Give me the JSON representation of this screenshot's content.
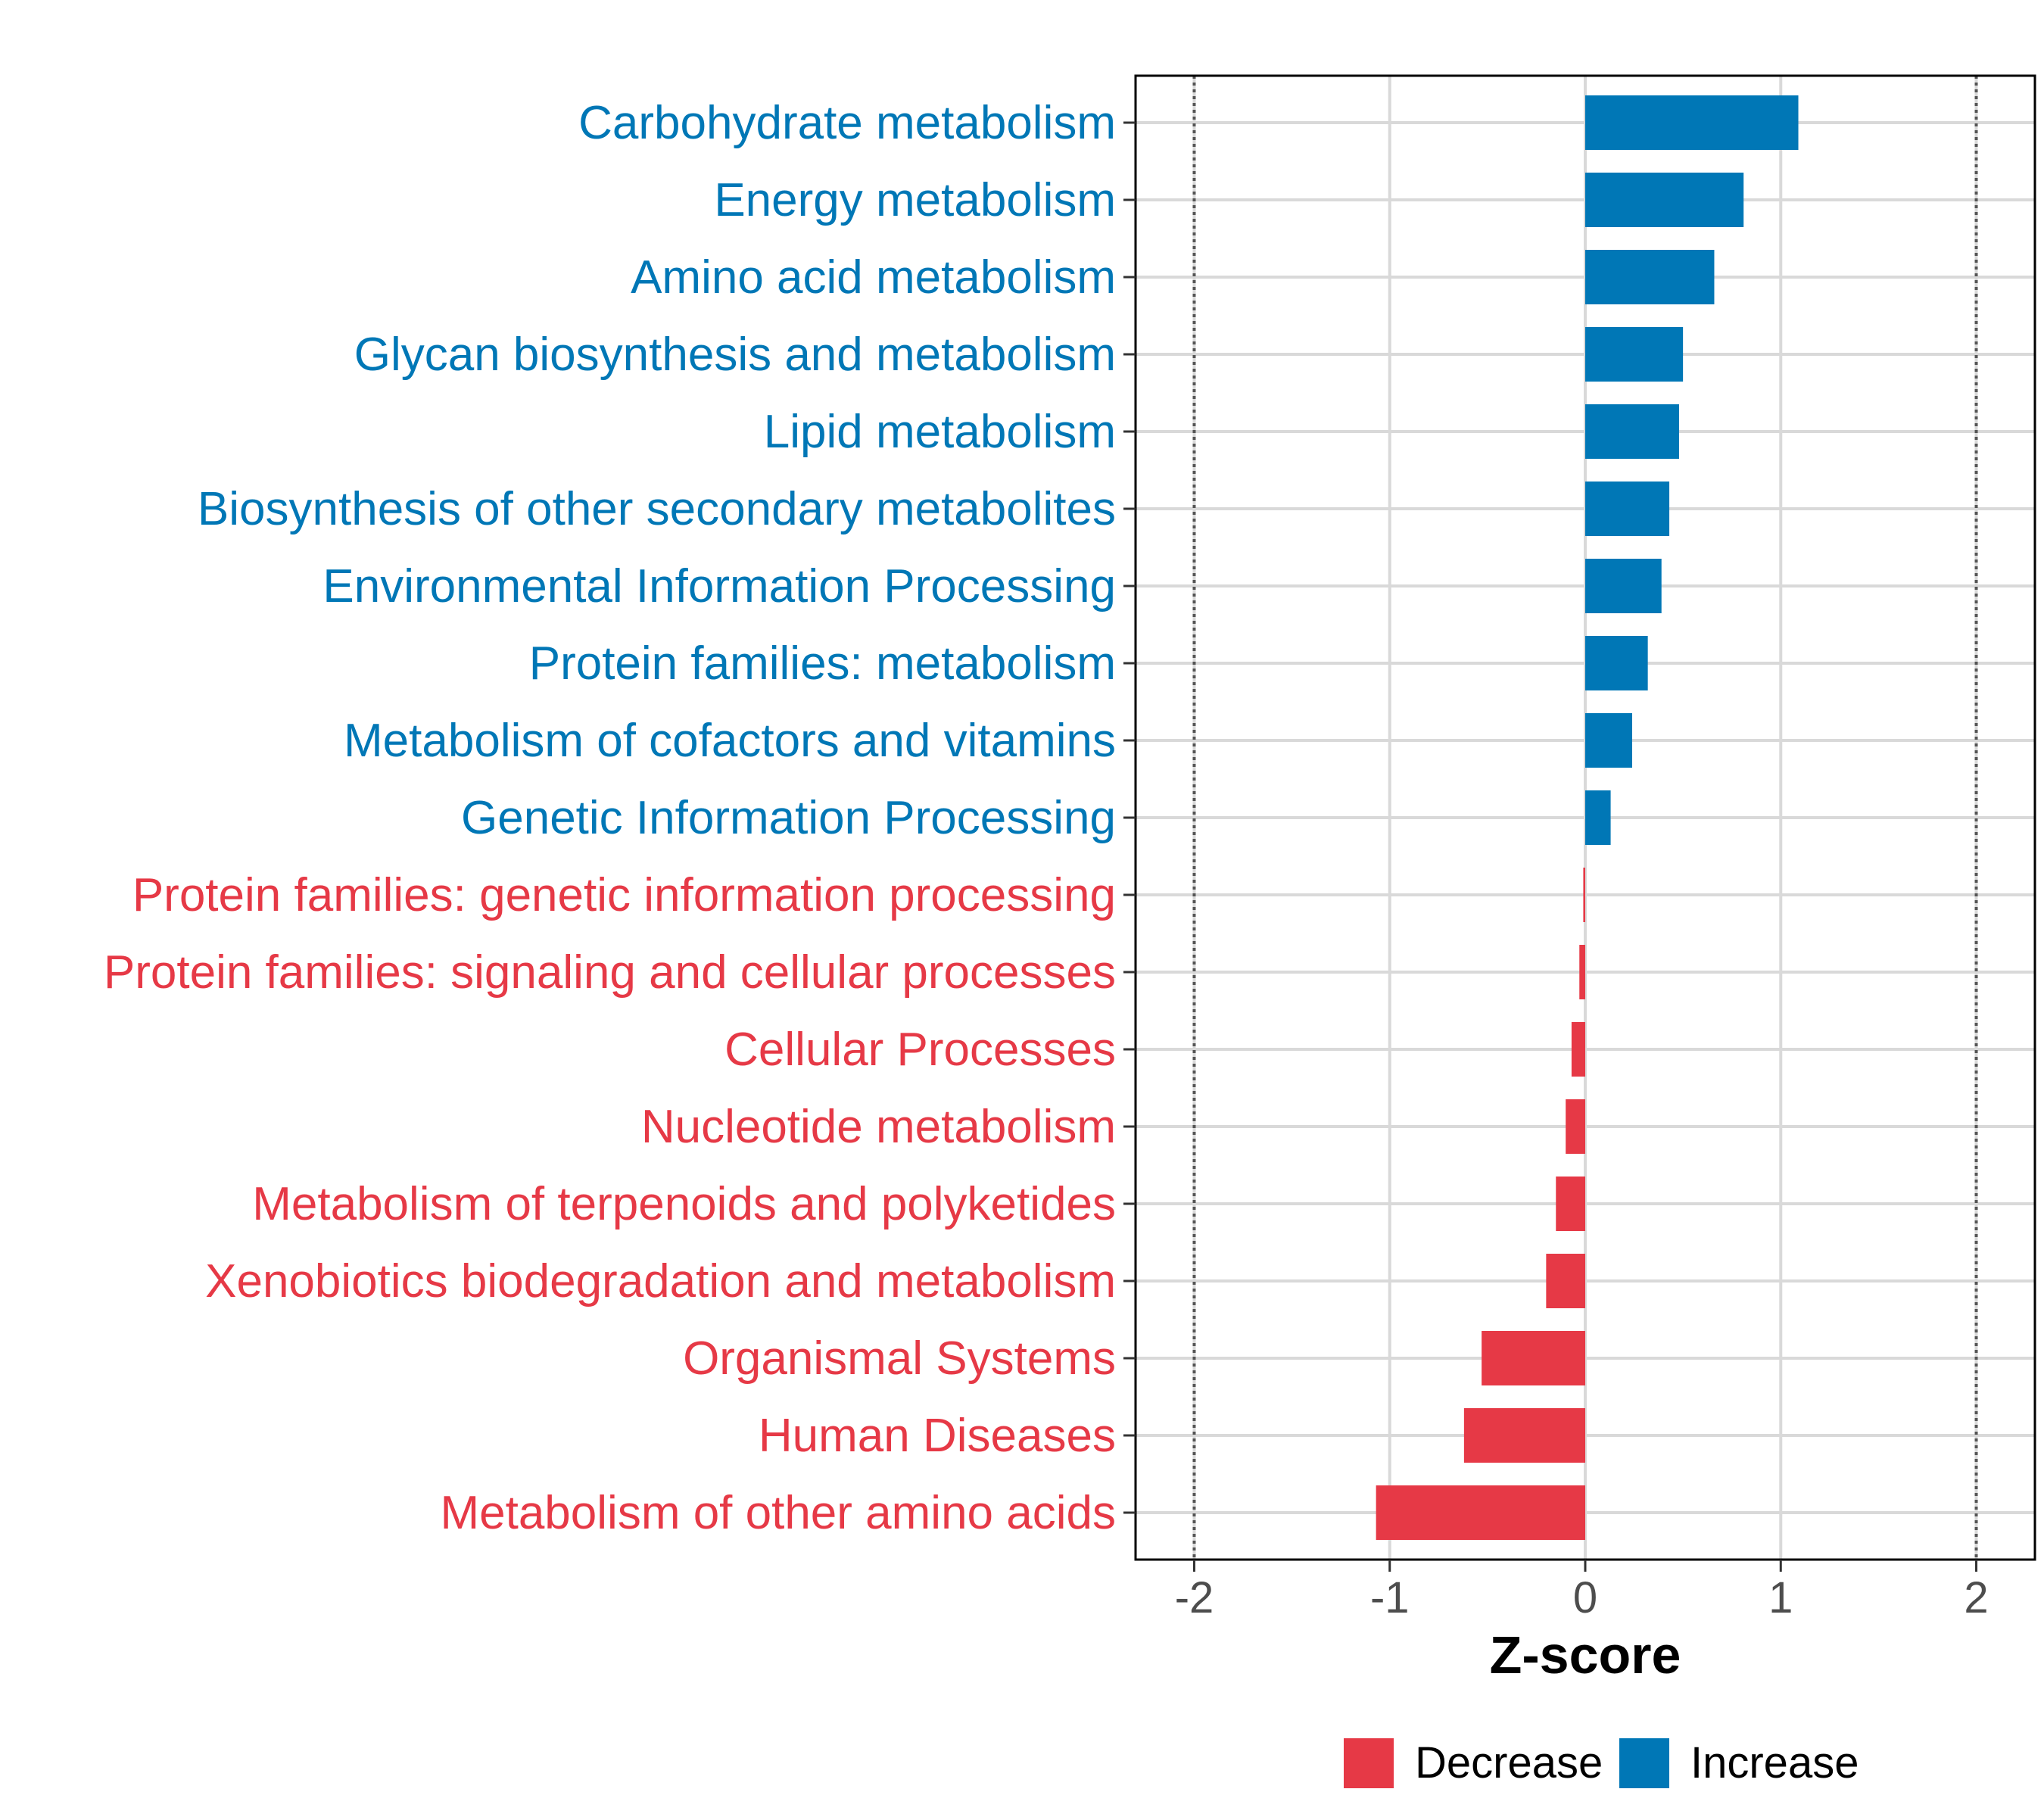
{
  "chart_data": {
    "type": "bar",
    "orientation": "horizontal",
    "title": "",
    "xlabel": "Z-score",
    "ylabel": "",
    "xlim": [
      -2.3,
      2.3
    ],
    "xticks": [
      -2,
      -1,
      0,
      1,
      2
    ],
    "xtick_labels": [
      "-2",
      "-1",
      "0",
      "1",
      "2"
    ],
    "reference_lines": [
      -2,
      2
    ],
    "grid": true,
    "categories": [
      "Carbohydrate metabolism",
      "Energy metabolism",
      "Amino acid metabolism",
      "Glycan biosynthesis and metabolism",
      "Lipid metabolism",
      "Biosynthesis of other secondary metabolites",
      "Environmental Information Processing",
      "Protein families: metabolism",
      "Metabolism of cofactors and vitamins",
      "Genetic Information Processing",
      "Protein families: genetic information processing",
      "Protein families: signaling and cellular processes",
      "Cellular Processes",
      "Nucleotide metabolism",
      "Metabolism of terpenoids and polyketides",
      "Xenobiotics biodegradation and metabolism",
      "Organismal Systems",
      "Human Diseases",
      "Metabolism of other amino acids"
    ],
    "values": [
      1.09,
      0.81,
      0.66,
      0.5,
      0.48,
      0.43,
      0.39,
      0.32,
      0.24,
      0.13,
      -0.01,
      -0.03,
      -0.07,
      -0.1,
      -0.15,
      -0.2,
      -0.53,
      -0.62,
      -1.07
    ],
    "groups": [
      "Increase",
      "Increase",
      "Increase",
      "Increase",
      "Increase",
      "Increase",
      "Increase",
      "Increase",
      "Increase",
      "Increase",
      "Decrease",
      "Decrease",
      "Decrease",
      "Decrease",
      "Decrease",
      "Decrease",
      "Decrease",
      "Decrease",
      "Decrease"
    ],
    "legend": {
      "placement": "bottom",
      "entries": [
        {
          "label": "Decrease",
          "color": "#e63946"
        },
        {
          "label": "Increase",
          "color": "#0077b6"
        }
      ]
    },
    "colors": {
      "Decrease": "#e63946",
      "Increase": "#0077b6"
    }
  }
}
